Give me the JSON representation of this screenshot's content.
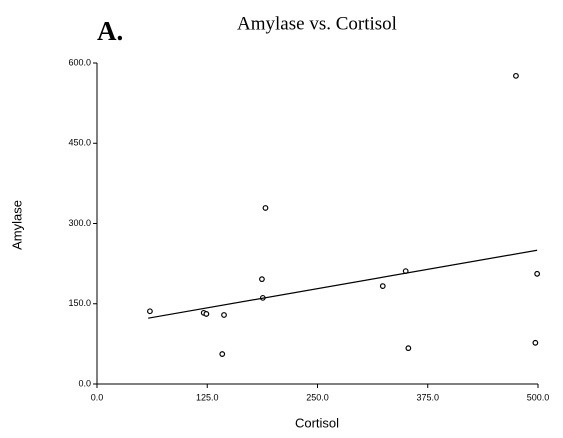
{
  "chart_data": {
    "type": "scatter",
    "panel_label": "A.",
    "title": "Amylase vs. Cortisol",
    "x_label": "Cortisol",
    "y_label": "Amylase",
    "xlim": [
      0,
      500
    ],
    "ylim": [
      0,
      600
    ],
    "xticks": [
      {
        "value": 0,
        "label": "0.0"
      },
      {
        "value": 125,
        "label": "125.0"
      },
      {
        "value": 250,
        "label": "250.0"
      },
      {
        "value": 375,
        "label": "375.0"
      },
      {
        "value": 500,
        "label": "500.0"
      }
    ],
    "yticks": [
      {
        "value": 0,
        "label": "0.0"
      },
      {
        "value": 150,
        "label": "150.0"
      },
      {
        "value": 300,
        "label": "300.0"
      },
      {
        "value": 450,
        "label": "450.0"
      },
      {
        "value": 600,
        "label": "600.0"
      }
    ],
    "grid": false,
    "series": [
      {
        "type": "scatter",
        "color": "#000000",
        "x": [
          60,
          121,
          124,
          144,
          142,
          187,
          188,
          191,
          324,
          350,
          353,
          475,
          499,
          497
        ],
        "values": [
          136,
          133,
          131,
          129,
          56,
          196,
          161,
          329,
          183,
          211,
          67,
          576,
          206,
          77
        ]
      },
      {
        "type": "line",
        "color": "#000000",
        "x": [
          58,
          499
        ],
        "values": [
          123,
          250
        ]
      }
    ]
  }
}
